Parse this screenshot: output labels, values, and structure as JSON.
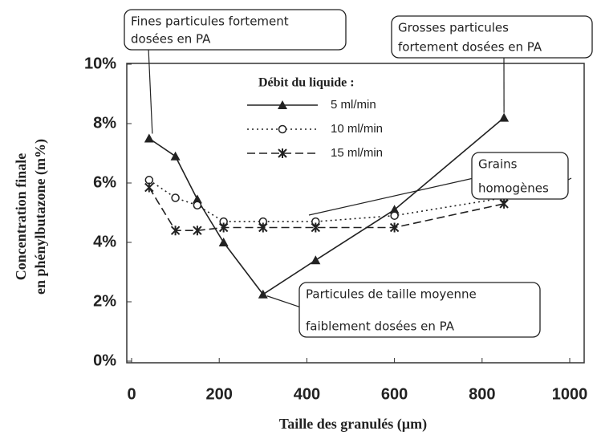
{
  "chart_data": {
    "type": "line",
    "xlabel": "Taille des granulés (µm)",
    "ylabel": [
      "Concentration finale",
      "en phénylbutazone (m%)"
    ],
    "legend_title": "Débit du liquide :",
    "x": [
      40,
      100,
      150,
      210,
      300,
      420,
      600,
      850
    ],
    "series": [
      {
        "name": "5 ml/min",
        "color": "#222222",
        "marker": "triangle",
        "dash": "solid",
        "values": [
          7.5,
          6.9,
          5.45,
          4.0,
          2.25,
          3.4,
          5.1,
          8.2
        ]
      },
      {
        "name": "10 ml/min",
        "color": "#222222",
        "marker": "circle",
        "dash": "dotted",
        "values": [
          6.1,
          5.5,
          5.25,
          4.7,
          4.7,
          4.7,
          4.9,
          5.5
        ]
      },
      {
        "name": "15 ml/min",
        "color": "#222222",
        "marker": "star",
        "dash": "dashed",
        "values": [
          5.85,
          4.4,
          4.4,
          4.5,
          4.5,
          4.5,
          4.5,
          5.3
        ]
      }
    ],
    "xlim": [
      0,
      1000
    ],
    "xticks": [
      0,
      200,
      400,
      600,
      800,
      1000
    ],
    "ylim": [
      0,
      10
    ],
    "yticks": [
      {
        "value": 0,
        "label": "0%"
      },
      {
        "value": 2,
        "label": "2%"
      },
      {
        "value": 4,
        "label": "4%"
      },
      {
        "value": 6,
        "label": "6%"
      },
      {
        "value": 8,
        "label": "8%"
      },
      {
        "value": 10,
        "label": "10%"
      }
    ],
    "grid": false,
    "annotations": [
      {
        "lines": [
          "Fines particules fortement",
          "dosées en PA"
        ]
      },
      {
        "lines": [
          "Grosses particules",
          "fortement dosées en PA"
        ]
      },
      {
        "lines": [
          "Grains",
          "homogènes"
        ]
      },
      {
        "lines": [
          "Particules de taille moyenne",
          "faiblement dosées en PA"
        ]
      }
    ]
  }
}
